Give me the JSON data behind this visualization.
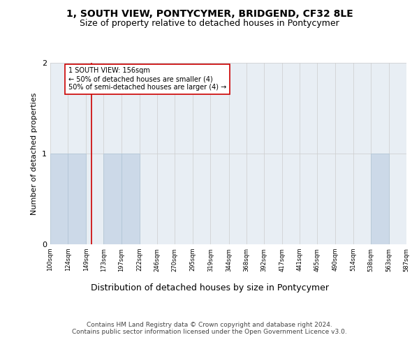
{
  "title": "1, SOUTH VIEW, PONTYCYMER, BRIDGEND, CF32 8LE",
  "subtitle": "Size of property relative to detached houses in Pontycymer",
  "xlabel": "Distribution of detached houses by size in Pontycymer",
  "ylabel": "Number of detached properties",
  "bin_edges": [
    100,
    124,
    149,
    173,
    197,
    222,
    246,
    270,
    295,
    319,
    344,
    368,
    392,
    417,
    441,
    465,
    490,
    514,
    538,
    563,
    587
  ],
  "bar_heights": [
    1,
    1,
    0,
    1,
    1,
    0,
    0,
    0,
    0,
    0,
    0,
    0,
    0,
    0,
    0,
    0,
    0,
    0,
    1,
    0
  ],
  "bar_color": "#ccd9e8",
  "bar_edgecolor": "#aec3d4",
  "property_size": 156,
  "property_line_color": "#cc0000",
  "annotation_text": "1 SOUTH VIEW: 156sqm\n← 50% of detached houses are smaller (4)\n50% of semi-detached houses are larger (4) →",
  "annotation_box_edgecolor": "#cc0000",
  "annotation_box_facecolor": "white",
  "ylim": [
    0,
    2
  ],
  "yticks": [
    0,
    1,
    2
  ],
  "footer_text": "Contains HM Land Registry data © Crown copyright and database right 2024.\nContains public sector information licensed under the Open Government Licence v3.0.",
  "title_fontsize": 10,
  "subtitle_fontsize": 9,
  "xlabel_fontsize": 9,
  "ylabel_fontsize": 8,
  "annotation_fontsize": 7,
  "footer_fontsize": 6.5,
  "grid_color": "#cccccc",
  "background_color": "#e8eef4"
}
